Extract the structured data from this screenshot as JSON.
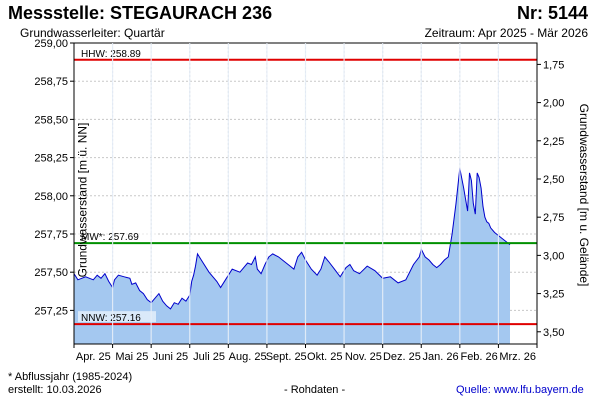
{
  "header": {
    "title": "Messstelle: STEGAURACH 236",
    "nr": "Nr: 5144",
    "subtitle": "Grundwasserleiter: Quartär",
    "period": "Zeitraum: Apr 2025 - Mär 2026"
  },
  "footer": {
    "note": "* Abflussjahr (1985-2024)",
    "created": "erstellt:  10.03.2026",
    "raw": "- Rohdaten -",
    "source": "Quelle: www.lfu.bayern.de"
  },
  "colors": {
    "fill": "#a4c8f0",
    "line": "#0000cc",
    "limit": "#e00000",
    "mean": "#009000",
    "grid": "#c8c8c8"
  },
  "chart_data": {
    "type": "area",
    "ylabel": "Grundwasserstand [m ü. NN]",
    "y2label": "Grundwasserstand [m u. Gelände]",
    "ylim": [
      257.03,
      259.0
    ],
    "y2lim": [
      1.61,
      3.58
    ],
    "yticks": [
      257.25,
      257.5,
      257.75,
      258.0,
      258.25,
      258.5,
      258.75,
      259.0
    ],
    "ytick_labels": [
      "257,25",
      "257,50",
      "257,75",
      "258,00",
      "258,25",
      "258,50",
      "258,75",
      "259,00"
    ],
    "y2ticks": [
      1.75,
      2.0,
      2.25,
      2.5,
      2.75,
      3.0,
      3.25,
      3.5
    ],
    "y2tick_labels": [
      "1,75",
      "2,00",
      "2,25",
      "2,50",
      "2,75",
      "3,00",
      "3,25",
      "3,50"
    ],
    "xlim": [
      0,
      12
    ],
    "xticks": [
      0,
      1,
      2,
      3,
      4,
      5,
      6,
      7,
      8,
      9,
      10,
      11,
      12
    ],
    "xtick_labels": [
      "Apr. 25",
      "Mai 25",
      "Juni 25",
      "Juli 25",
      "Aug. 25",
      "Sept. 25",
      "Okt. 25",
      "Nov. 25",
      "Dez. 25",
      "Jan. 26",
      "Feb. 26",
      "Mrz. 26"
    ],
    "reference_lines": [
      {
        "label": "HHW: 258.89",
        "value": 258.89,
        "kind": "limit"
      },
      {
        "label": "MW*: 257.69",
        "value": 257.69,
        "kind": "mean"
      },
      {
        "label": "NNW: 257.16",
        "value": 257.16,
        "kind": "limit"
      }
    ],
    "series": [
      {
        "x": [
          0,
          0.1,
          0.3,
          0.5,
          0.6,
          0.7,
          0.8,
          0.9,
          1.0,
          1.05,
          1.15,
          1.3,
          1.45,
          1.5,
          1.6,
          1.7,
          1.8,
          1.9,
          2.0,
          2.1,
          2.2,
          2.3,
          2.4,
          2.5,
          2.6,
          2.7,
          2.8,
          2.9,
          3.0,
          3.05,
          3.1,
          3.15,
          3.2,
          3.3,
          3.5,
          3.7,
          3.8,
          3.95,
          4.1,
          4.3,
          4.5,
          4.6,
          4.7,
          4.75,
          4.85,
          4.95,
          5.05,
          5.15,
          5.3,
          5.45,
          5.55,
          5.7,
          5.8,
          5.9,
          6.0,
          6.15,
          6.3,
          6.4,
          6.5,
          6.6,
          6.75,
          6.9,
          7.05,
          7.15,
          7.25,
          7.4,
          7.6,
          7.8,
          8.0,
          8.2,
          8.4,
          8.6,
          8.8,
          8.95,
          9.0,
          9.1,
          9.2,
          9.3,
          9.4,
          9.5,
          9.6,
          9.7,
          9.8,
          9.9,
          10.0,
          10.1,
          10.2,
          10.25,
          10.3,
          10.35,
          10.4,
          10.45,
          10.5,
          10.55,
          10.6,
          10.65,
          10.7,
          10.75,
          10.8,
          10.9,
          11.0,
          11.1,
          11.2,
          11.3
        ],
        "values": [
          257.49,
          257.45,
          257.47,
          257.45,
          257.48,
          257.46,
          257.49,
          257.44,
          257.4,
          257.45,
          257.48,
          257.47,
          257.46,
          257.42,
          257.43,
          257.38,
          257.36,
          257.32,
          257.3,
          257.33,
          257.36,
          257.31,
          257.28,
          257.26,
          257.3,
          257.29,
          257.33,
          257.31,
          257.35,
          257.44,
          257.48,
          257.54,
          257.62,
          257.58,
          257.5,
          257.44,
          257.4,
          257.46,
          257.52,
          257.5,
          257.56,
          257.55,
          257.6,
          257.52,
          257.49,
          257.55,
          257.6,
          257.62,
          257.6,
          257.57,
          257.55,
          257.52,
          257.6,
          257.63,
          257.58,
          257.52,
          257.48,
          257.52,
          257.6,
          257.57,
          257.52,
          257.47,
          257.53,
          257.55,
          257.51,
          257.49,
          257.54,
          257.51,
          257.46,
          257.47,
          257.43,
          257.45,
          257.55,
          257.6,
          257.65,
          257.6,
          257.58,
          257.55,
          257.53,
          257.55,
          257.58,
          257.6,
          257.75,
          257.95,
          258.18,
          258.05,
          257.9,
          258.15,
          258.1,
          257.95,
          257.88,
          258.15,
          258.12,
          258.05,
          257.93,
          257.86,
          257.83,
          257.82,
          257.79,
          257.76,
          257.74,
          257.72,
          257.7,
          257.68
        ]
      }
    ]
  }
}
